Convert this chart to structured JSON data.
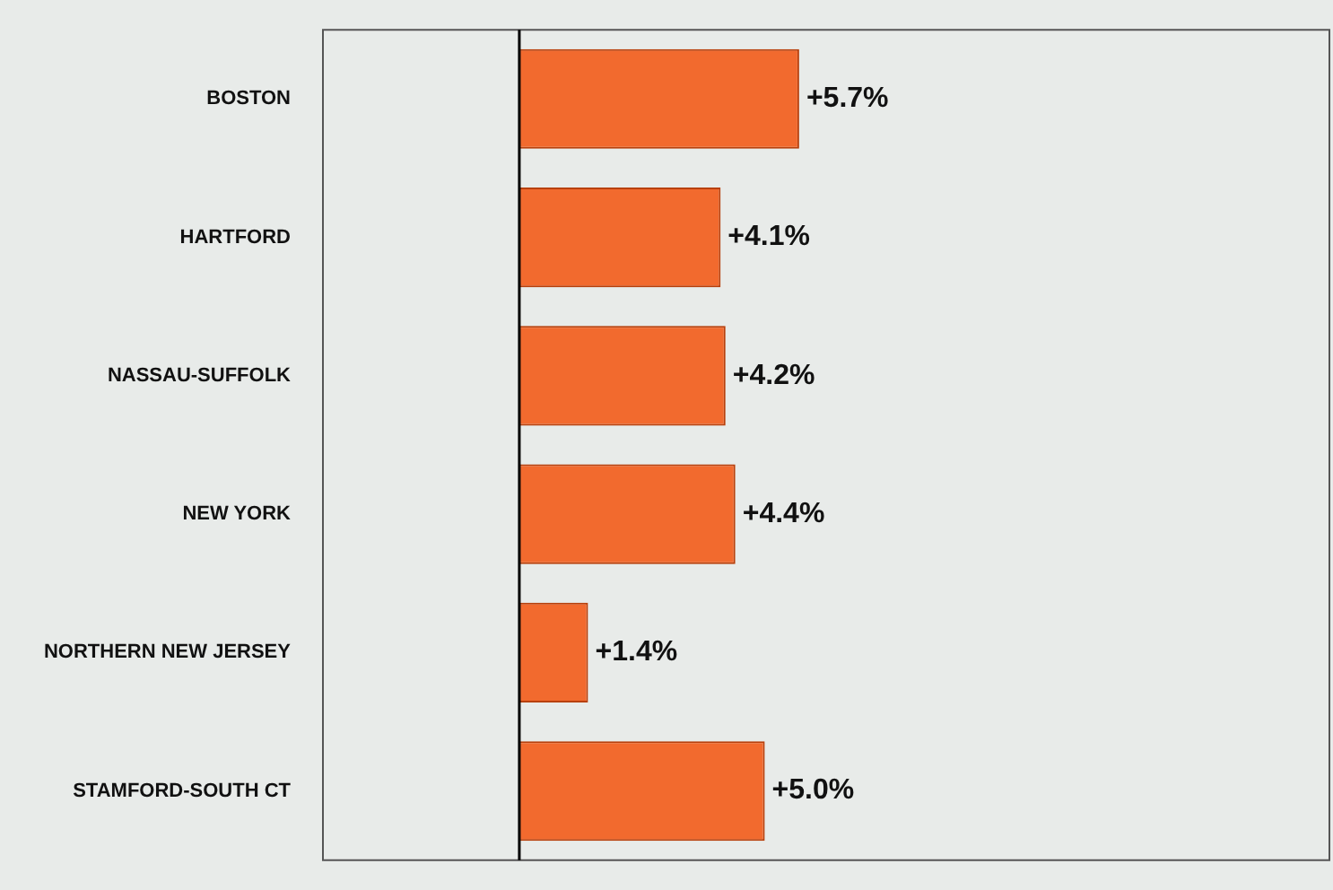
{
  "chart_data": {
    "type": "bar",
    "orientation": "horizontal",
    "categories": [
      "BOSTON",
      "HARTFORD",
      "NASSAU-SUFFOLK",
      "NEW YORK",
      "NORTHERN NEW JERSEY",
      "STAMFORD-SOUTH CT"
    ],
    "values": [
      5.7,
      4.1,
      4.2,
      4.4,
      1.4,
      5.0
    ],
    "value_labels": [
      "+5.7%",
      "+4.1%",
      "+4.2%",
      "+4.4%",
      "+1.4%",
      "+5.0%"
    ],
    "color": "#f26a2e",
    "xlim": [
      -4,
      16.5
    ],
    "ref_lines": [
      {
        "axis": "x",
        "value": 0,
        "color": "#000000"
      }
    ],
    "tick_labels": "y",
    "legend": false
  }
}
